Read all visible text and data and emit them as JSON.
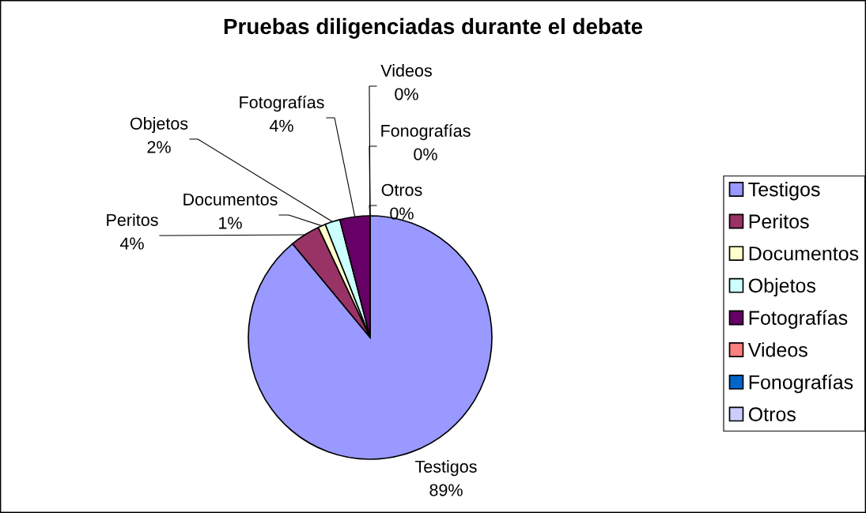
{
  "chart_data": {
    "type": "pie",
    "title": "Pruebas diligenciadas durante el debate",
    "categories": [
      "Testigos",
      "Peritos",
      "Documentos",
      "Objetos",
      "Fotografías",
      "Videos",
      "Fonografías",
      "Otros"
    ],
    "values": [
      89,
      4,
      1,
      2,
      4,
      0,
      0,
      0
    ],
    "colors": [
      "#9999ff",
      "#993366",
      "#ffffcc",
      "#ccffff",
      "#660066",
      "#ff8080",
      "#0066cc",
      "#ccccff"
    ],
    "value_labels": [
      "89%",
      "4%",
      "1%",
      "2%",
      "4%",
      "0%",
      "0%",
      "0%"
    ],
    "legend": "right"
  }
}
